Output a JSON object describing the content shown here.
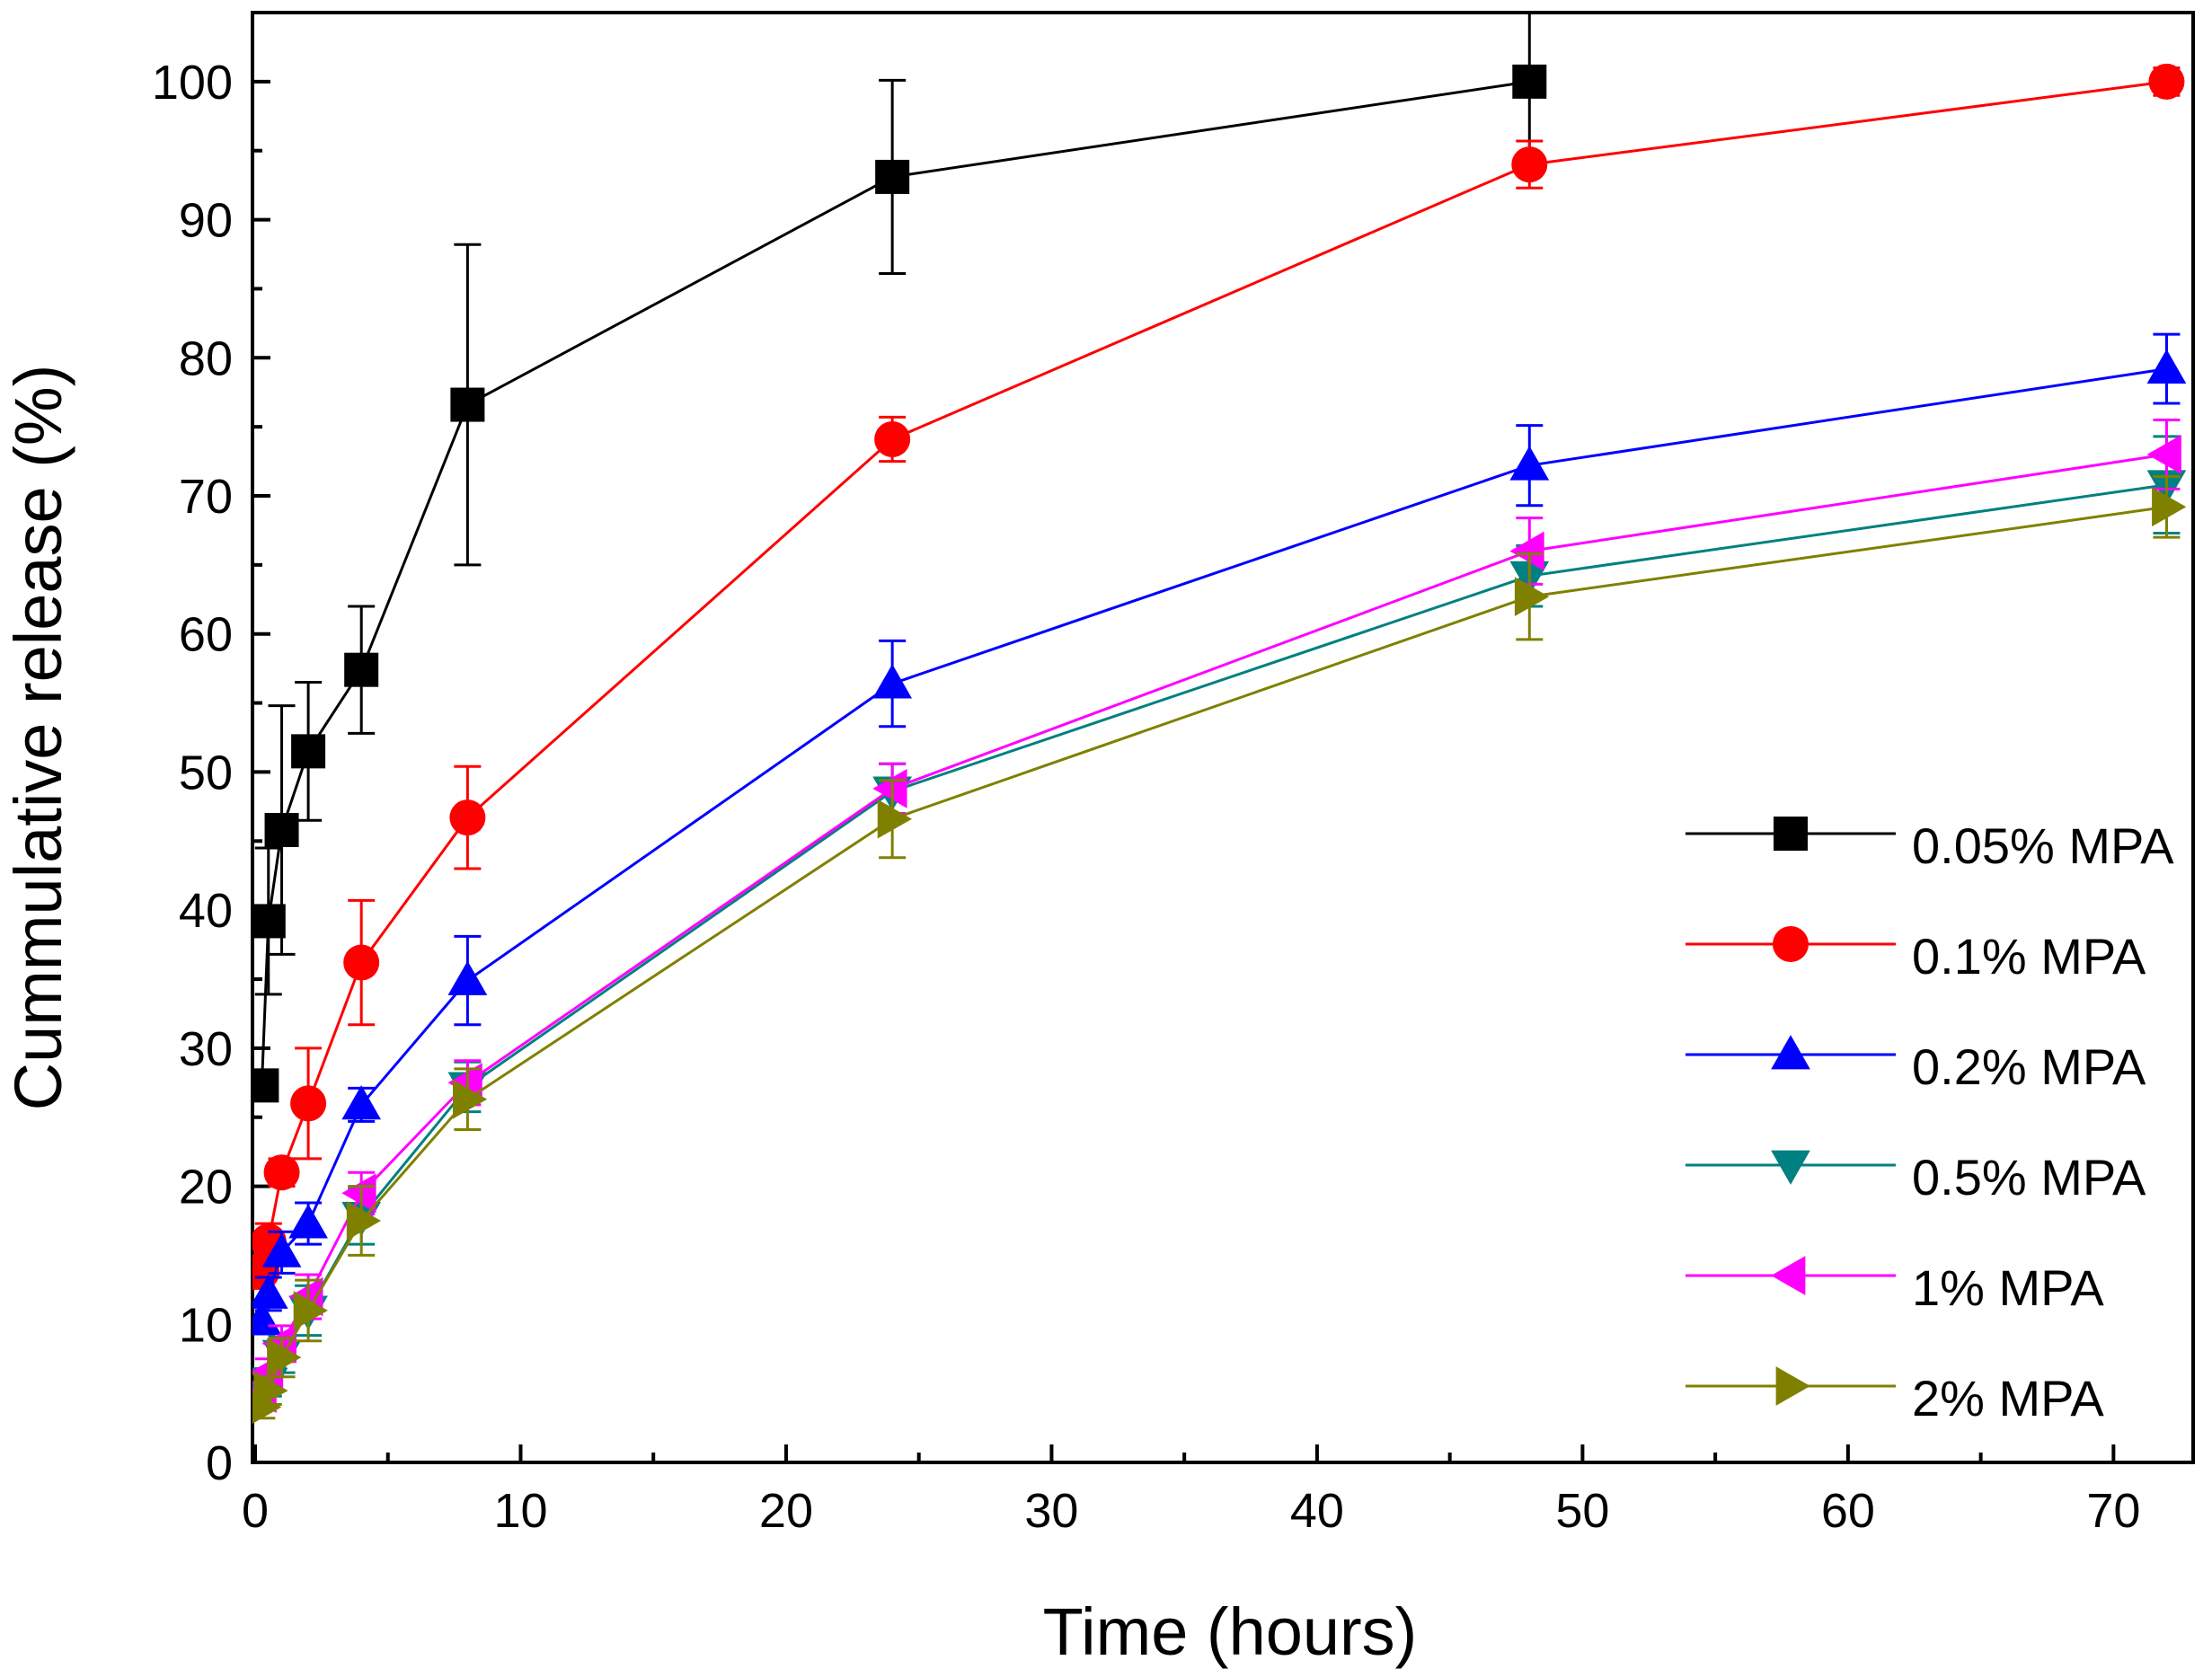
{
  "chart_data": {
    "type": "line",
    "xlabel": "Time (hours)",
    "ylabel": "Cummulative release (%)",
    "xlim": [
      0,
      73
    ],
    "ylim": [
      0,
      105
    ],
    "xticks": [
      0,
      10,
      20,
      30,
      40,
      50,
      60,
      70
    ],
    "yticks": [
      0,
      10,
      20,
      30,
      40,
      50,
      60,
      70,
      80,
      90,
      100
    ],
    "error_bars": true,
    "legend_position": "right-lower",
    "grid": false,
    "series": [
      {
        "name": "0.05% MPA",
        "color": "#000000",
        "marker": "square",
        "x": [
          0.25,
          0.5,
          1,
          2,
          4,
          8,
          24,
          48
        ],
        "y": [
          27.3,
          39.2,
          45.8,
          51.5,
          57.4,
          76.6,
          93.1,
          100.0
        ],
        "err": [
          0,
          5.3,
          9.0,
          5.0,
          4.6,
          11.6,
          7.0,
          6.0
        ]
      },
      {
        "name": "0.1% MPA",
        "color": "#ff0000",
        "marker": "circle",
        "x": [
          0.25,
          0.5,
          1,
          2,
          4,
          8,
          24,
          48,
          72
        ],
        "y": [
          13.8,
          16.0,
          21.0,
          26.0,
          36.2,
          46.7,
          74.1,
          94.0,
          100.0
        ],
        "err": [
          1.2,
          1.3,
          1.0,
          4.0,
          4.5,
          3.7,
          1.6,
          1.7,
          1.0
        ]
      },
      {
        "name": "0.2% MPA",
        "color": "#0000ff",
        "marker": "triangle-up",
        "x": [
          0.25,
          0.5,
          1,
          2,
          4,
          8,
          24,
          48,
          72
        ],
        "y": [
          10.3,
          12.2,
          15.2,
          17.3,
          25.9,
          34.9,
          56.4,
          72.2,
          79.2
        ],
        "err": [
          1.0,
          1.2,
          1.5,
          1.5,
          1.2,
          3.2,
          3.1,
          2.9,
          2.5
        ]
      },
      {
        "name": "0.5% MPA",
        "color": "#008080",
        "marker": "triangle-down",
        "x": [
          0.25,
          0.5,
          1,
          2,
          4,
          8,
          24,
          48,
          72
        ],
        "y": [
          4.8,
          5.8,
          7.8,
          11.0,
          17.8,
          27.2,
          48.6,
          64.2,
          70.8
        ],
        "err": [
          0.8,
          1.0,
          1.3,
          1.8,
          2.0,
          1.8,
          2.0,
          2.2,
          3.5
        ]
      },
      {
        "name": "1% MPA",
        "color": "#ff00ff",
        "marker": "triangle-left",
        "x": [
          0.25,
          0.5,
          1,
          2,
          4,
          8,
          24,
          48,
          72
        ],
        "y": [
          5.0,
          6.5,
          8.6,
          12.0,
          19.5,
          27.5,
          48.8,
          66.0,
          73.0
        ],
        "err": [
          0.8,
          1.0,
          1.3,
          1.6,
          1.5,
          1.6,
          1.8,
          2.4,
          2.5
        ]
      },
      {
        "name": "2% MPA",
        "color": "#808000",
        "marker": "triangle-right",
        "x": [
          0.25,
          0.5,
          1,
          2,
          4,
          8,
          24,
          48,
          72
        ],
        "y": [
          4.0,
          5.2,
          7.6,
          11.0,
          17.5,
          26.3,
          46.6,
          62.7,
          69.2
        ],
        "err": [
          0.8,
          1.0,
          1.4,
          2.2,
          2.5,
          2.2,
          2.8,
          3.1,
          2.2
        ]
      }
    ]
  }
}
